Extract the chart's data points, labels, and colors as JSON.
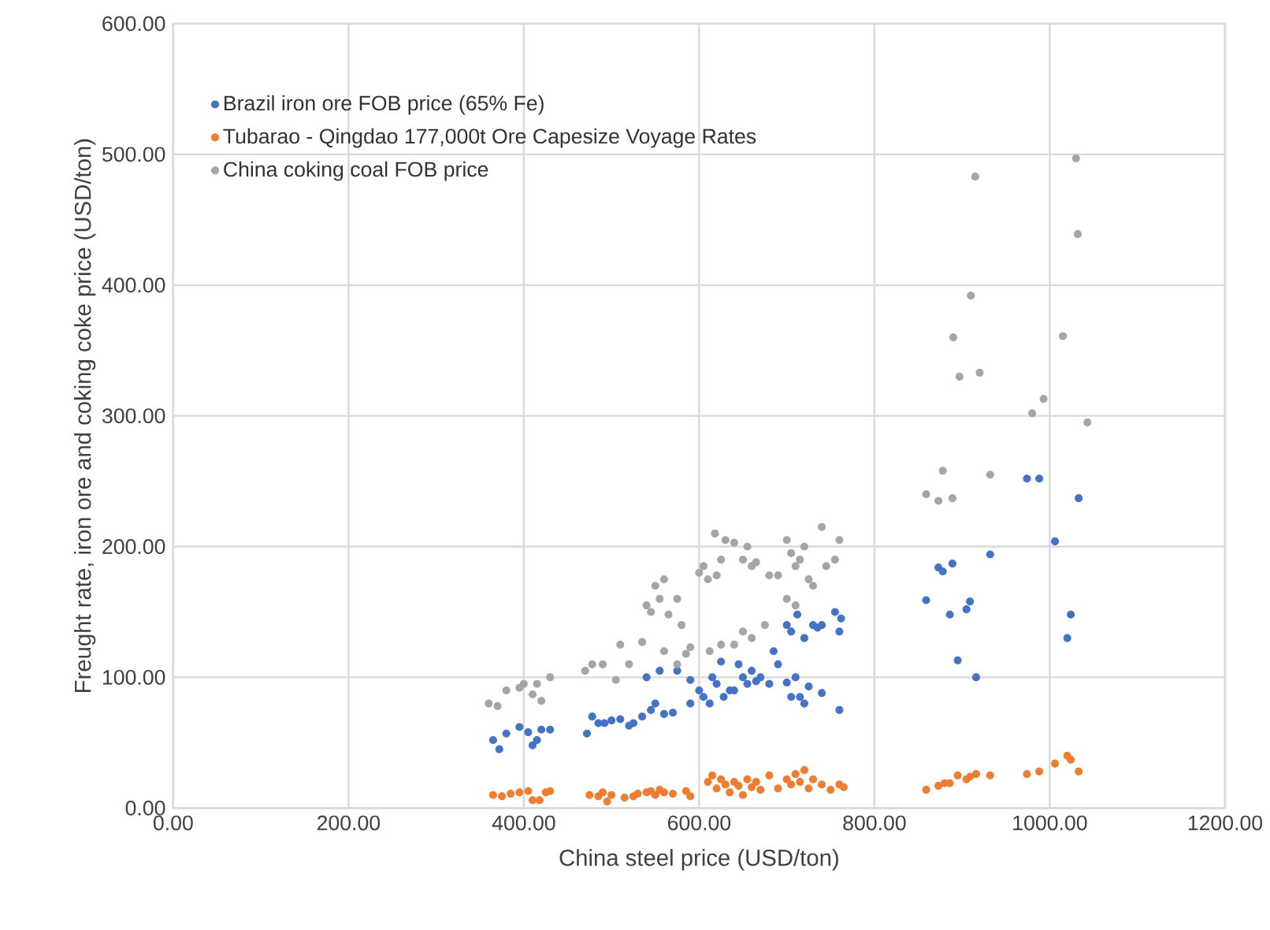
{
  "chart_data": {
    "type": "scatter",
    "xlabel": "China steel price (USD/ton)",
    "ylabel": "Freught rate, iron ore and coking coke price (USD/ton)",
    "xlim": [
      0,
      1200
    ],
    "ylim": [
      0,
      600
    ],
    "xticks": [
      {
        "value": 0,
        "label": "0.00"
      },
      {
        "value": 200,
        "label": "200.00"
      },
      {
        "value": 400,
        "label": "400.00"
      },
      {
        "value": 600,
        "label": "600.00"
      },
      {
        "value": 800,
        "label": "800.00"
      },
      {
        "value": 1000,
        "label": "1000.00"
      },
      {
        "value": 1200,
        "label": "1200.00"
      }
    ],
    "yticks": [
      {
        "value": 0,
        "label": "0.00"
      },
      {
        "value": 100,
        "label": "100.00"
      },
      {
        "value": 200,
        "label": "200.00"
      },
      {
        "value": 300,
        "label": "300.00"
      },
      {
        "value": 400,
        "label": "400.00"
      },
      {
        "value": 500,
        "label": "500.00"
      },
      {
        "value": 600,
        "label": "600.00"
      }
    ],
    "grid": true,
    "legend": "top left",
    "marker": "circle",
    "series": [
      {
        "name": "Brazil iron ore FOB price (65% Fe)",
        "color": "#4472c4",
        "x": [
          365,
          372,
          380,
          395,
          405,
          410,
          415,
          420,
          430,
          472,
          478,
          485,
          492,
          500,
          510,
          520,
          525,
          535,
          545,
          550,
          560,
          570,
          540,
          555,
          575,
          590,
          590,
          600,
          605,
          612,
          615,
          620,
          625,
          628,
          635,
          640,
          645,
          650,
          655,
          660,
          665,
          670,
          680,
          685,
          690,
          700,
          705,
          710,
          715,
          720,
          725,
          740,
          760,
          700,
          705,
          712,
          720,
          730,
          735,
          740,
          755,
          760,
          762,
          974,
          988,
          1033,
          1006,
          932,
          873,
          878,
          889,
          859,
          909,
          905,
          886,
          1024,
          1020,
          895,
          916
        ],
        "values": [
          52,
          45,
          57,
          62,
          58,
          48,
          52,
          60,
          60,
          57,
          70,
          65,
          65,
          67,
          68,
          63,
          65,
          70,
          75,
          80,
          72,
          73,
          100,
          105,
          105,
          98,
          80,
          90,
          85,
          80,
          100,
          95,
          112,
          85,
          90,
          90,
          110,
          100,
          95,
          105,
          97,
          100,
          95,
          120,
          110,
          96,
          85,
          100,
          85,
          80,
          93,
          88,
          75,
          140,
          135,
          148,
          130,
          140,
          138,
          140,
          150,
          135,
          145,
          252,
          252,
          237,
          204,
          194,
          184,
          181,
          187,
          159,
          158,
          152,
          148,
          148,
          130,
          113,
          100
        ]
      },
      {
        "name": "Tubarao - Qingdao 177,000t Ore Capesize Voyage Rates",
        "color": "#ed7d31",
        "x": [
          365,
          375,
          385,
          395,
          405,
          410,
          418,
          425,
          430,
          475,
          485,
          490,
          495,
          500,
          515,
          525,
          530,
          540,
          545,
          550,
          555,
          560,
          570,
          585,
          590,
          610,
          615,
          620,
          625,
          630,
          635,
          640,
          645,
          650,
          655,
          660,
          665,
          670,
          680,
          690,
          700,
          705,
          710,
          715,
          720,
          725,
          730,
          740,
          750,
          760,
          765,
          859,
          873,
          880,
          886,
          895,
          905,
          909,
          916,
          932,
          974,
          988,
          1006,
          1020,
          1024,
          1033
        ],
        "values": [
          10,
          9,
          11,
          12,
          13,
          6,
          6,
          12,
          13,
          10,
          9,
          12,
          5,
          10,
          8,
          9,
          11,
          12,
          13,
          10,
          14,
          12,
          11,
          13,
          9,
          20,
          25,
          15,
          22,
          18,
          12,
          20,
          17,
          10,
          22,
          16,
          20,
          14,
          25,
          15,
          22,
          18,
          26,
          20,
          29,
          15,
          22,
          18,
          14,
          18,
          16,
          14,
          17,
          19,
          19,
          25,
          22,
          24,
          26,
          25,
          26,
          28,
          34,
          40,
          37,
          28
        ]
      },
      {
        "name": "China coking coal FOB price",
        "color": "#a5a5a5",
        "x": [
          360,
          370,
          380,
          395,
          400,
          410,
          415,
          420,
          430,
          470,
          478,
          490,
          505,
          510,
          520,
          535,
          540,
          545,
          550,
          555,
          560,
          565,
          575,
          580,
          585,
          560,
          575,
          590,
          600,
          605,
          610,
          618,
          620,
          625,
          630,
          640,
          650,
          655,
          660,
          665,
          680,
          690,
          700,
          705,
          710,
          715,
          720,
          725,
          730,
          740,
          745,
          755,
          760,
          612,
          625,
          640,
          650,
          660,
          675,
          700,
          710,
          859,
          873,
          878,
          889,
          890,
          897,
          910,
          915,
          920,
          932,
          980,
          993,
          1015,
          1030,
          1032,
          1043
        ],
        "values": [
          80,
          78,
          90,
          92,
          95,
          87,
          95,
          82,
          100,
          105,
          110,
          110,
          98,
          125,
          110,
          127,
          155,
          150,
          170,
          160,
          175,
          148,
          160,
          140,
          118,
          120,
          110,
          123,
          180,
          185,
          175,
          210,
          178,
          190,
          205,
          203,
          190,
          200,
          185,
          188,
          178,
          178,
          205,
          195,
          185,
          190,
          200,
          175,
          170,
          215,
          185,
          190,
          205,
          120,
          125,
          125,
          135,
          130,
          140,
          160,
          155,
          240,
          235,
          258,
          237,
          360,
          330,
          392,
          483,
          333,
          255,
          302,
          313,
          361,
          497,
          439,
          295
        ]
      }
    ]
  }
}
